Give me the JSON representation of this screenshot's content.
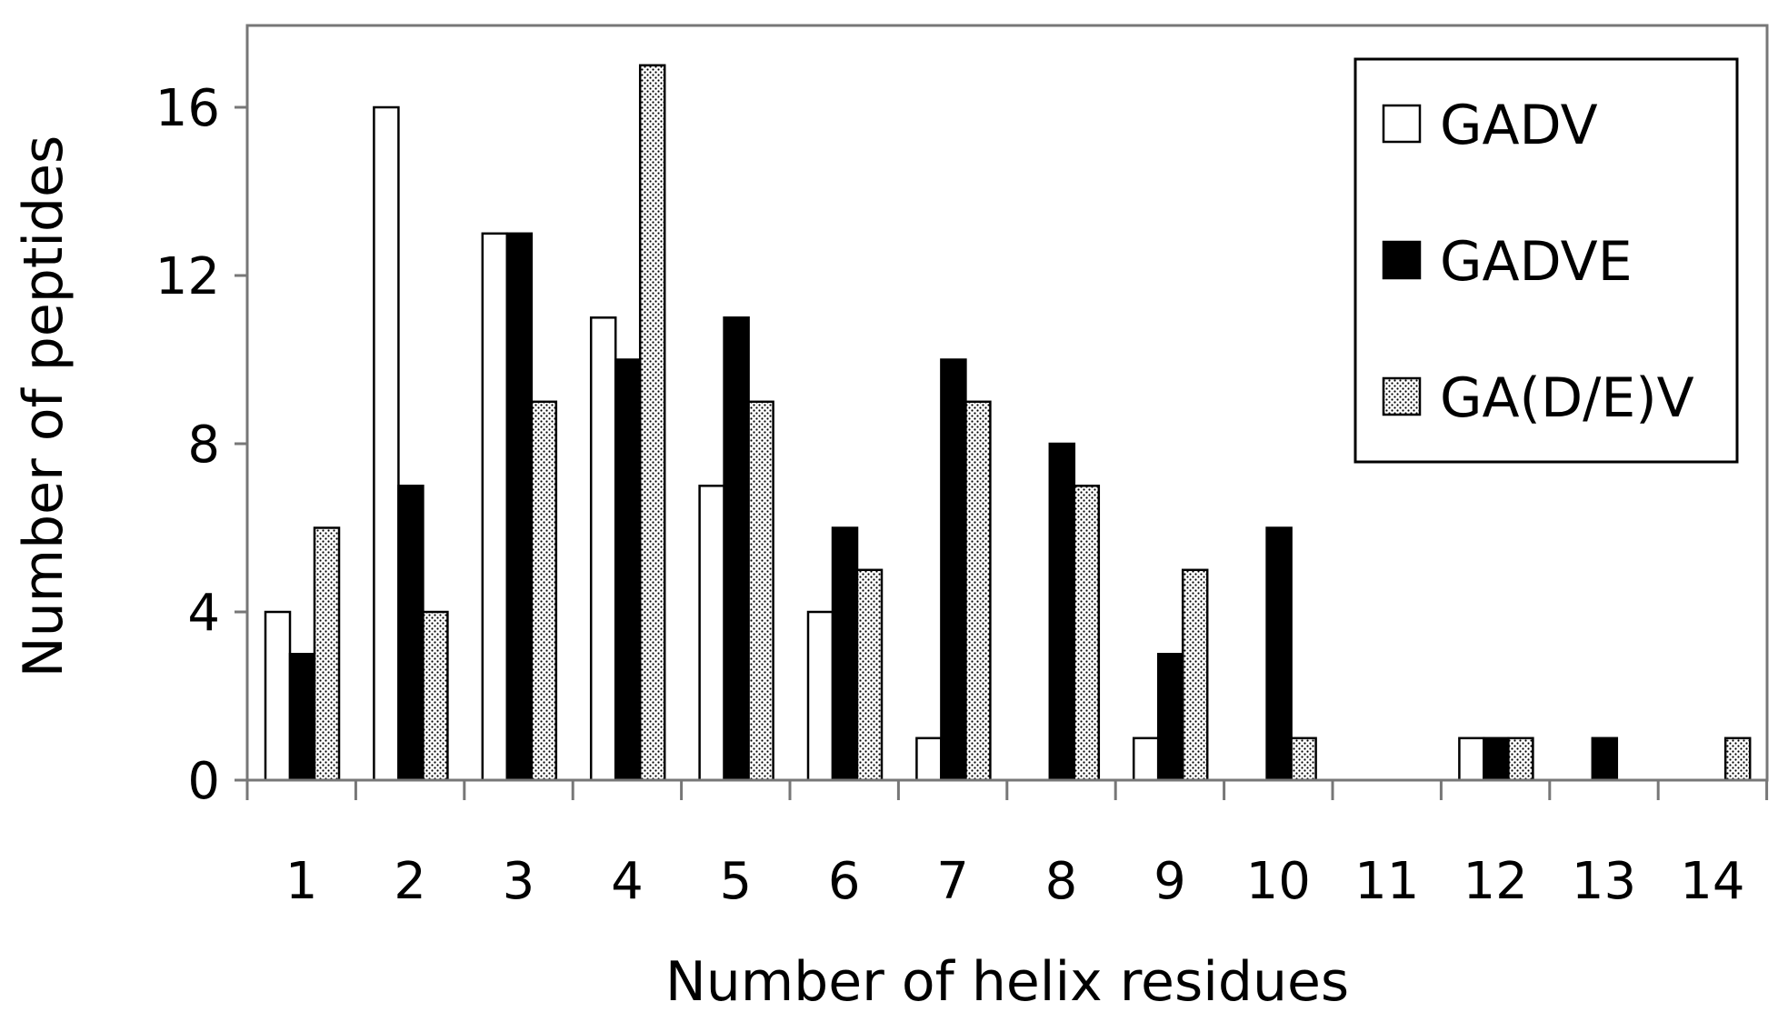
{
  "chart_data": {
    "type": "bar",
    "title": "",
    "xlabel": "Number of helix residues",
    "ylabel": "Number of peptides",
    "categories": [
      "1",
      "2",
      "3",
      "4",
      "5",
      "6",
      "7",
      "8",
      "9",
      "10",
      "11",
      "12",
      "13",
      "14"
    ],
    "yticks": [
      "0",
      "4",
      "8",
      "12",
      "16"
    ],
    "ylim": [
      0,
      18
    ],
    "grid": false,
    "legend_position": "top-right",
    "series": [
      {
        "name": "GADV",
        "fill": "#ffffff",
        "pattern": "none",
        "values": [
          4,
          16,
          13,
          11,
          7,
          4,
          1,
          0,
          1,
          0,
          0,
          1,
          0,
          0
        ]
      },
      {
        "name": "GADVE",
        "fill": "#000000",
        "pattern": "none",
        "values": [
          3,
          7,
          13,
          10,
          11,
          6,
          10,
          8,
          3,
          6,
          0,
          1,
          1,
          0
        ]
      },
      {
        "name": "GA(D/E)V",
        "fill": "#ffffff",
        "pattern": "dots",
        "values": [
          6,
          4,
          9,
          17,
          9,
          5,
          9,
          7,
          5,
          1,
          0,
          1,
          0,
          1
        ]
      }
    ]
  }
}
